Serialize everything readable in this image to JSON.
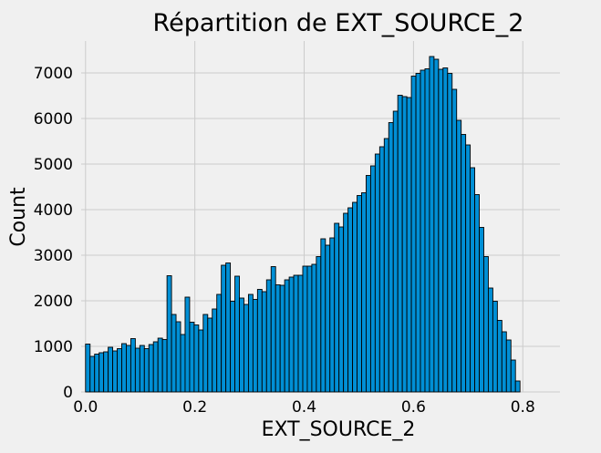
{
  "chart_data": {
    "type": "bar",
    "title": "Répartition de EXT_SOURCE_2",
    "xlabel": "EXT_SOURCE_2",
    "ylabel": "Count",
    "xlim": [
      -0.008,
      0.868
    ],
    "ylim": [
      0,
      7700
    ],
    "x_ticks": [
      0.0,
      0.2,
      0.4,
      0.6,
      0.8
    ],
    "x_tick_labels": [
      "0.0",
      "0.2",
      "0.4",
      "0.6",
      "0.8"
    ],
    "y_ticks": [
      0,
      1000,
      2000,
      3000,
      4000,
      5000,
      6000,
      7000
    ],
    "y_tick_labels": [
      "0",
      "1000",
      "2000",
      "3000",
      "4000",
      "5000",
      "6000",
      "7000"
    ],
    "grid": true,
    "bar_color": "#008fd5",
    "edge_color": "#000000",
    "background": "#f0f0f0",
    "bin_start": 0.0,
    "bin_width": 0.00828,
    "values": [
      1050,
      780,
      830,
      860,
      880,
      980,
      900,
      950,
      1060,
      1020,
      1170,
      960,
      1020,
      950,
      1040,
      1100,
      1180,
      1150,
      2550,
      1700,
      1540,
      1260,
      2080,
      1530,
      1470,
      1360,
      1700,
      1620,
      1820,
      2140,
      2780,
      2830,
      1990,
      2540,
      2060,
      1920,
      2140,
      2030,
      2250,
      2200,
      2460,
      2750,
      2350,
      2340,
      2460,
      2520,
      2560,
      2560,
      2760,
      2760,
      2800,
      2970,
      3360,
      3220,
      3380,
      3700,
      3620,
      3920,
      4040,
      4160,
      4310,
      4370,
      4750,
      4960,
      5220,
      5380,
      5560,
      5910,
      6160,
      6510,
      6480,
      6460,
      6930,
      6990,
      7060,
      7090,
      7360,
      7300,
      7080,
      7110,
      6990,
      6640,
      5960,
      5650,
      5420,
      4920,
      4330,
      3610,
      2970,
      2280,
      1990,
      1570,
      1320,
      1140,
      700,
      240
    ]
  }
}
